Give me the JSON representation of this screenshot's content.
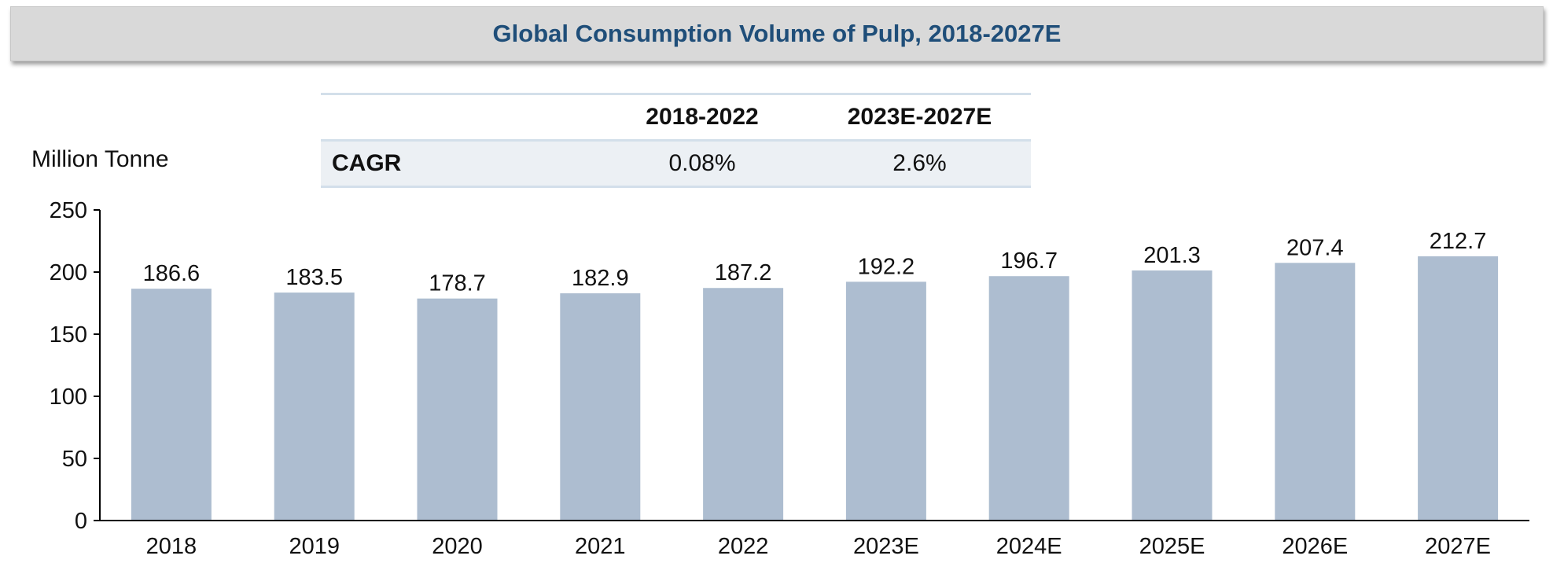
{
  "title": "Global Consumption Volume of Pulp, 2018-2027E",
  "cagr_table": {
    "headers": [
      "",
      "2018-2022",
      "2023E-2027E"
    ],
    "row_label": "CAGR",
    "values": [
      "0.08%",
      "2.6%"
    ]
  },
  "chart_data": {
    "type": "bar",
    "title": "Global Consumption Volume of Pulp, 2018-2027E",
    "ylabel": "Million Tonne",
    "xlabel": "",
    "categories": [
      "2018",
      "2019",
      "2020",
      "2021",
      "2022",
      "2023E",
      "2024E",
      "2025E",
      "2026E",
      "2027E"
    ],
    "values": [
      186.6,
      183.5,
      178.7,
      182.9,
      187.2,
      192.2,
      196.7,
      201.3,
      207.4,
      212.7
    ],
    "value_labels": [
      "186.6",
      "183.5",
      "178.7",
      "182.9",
      "187.2",
      "192.2",
      "196.7",
      "201.3",
      "207.4",
      "212.7"
    ],
    "ylim": [
      0,
      250
    ],
    "yticks": [
      0,
      50,
      100,
      150,
      200,
      250
    ],
    "grid": false,
    "bar_color": "#adbdd0"
  }
}
